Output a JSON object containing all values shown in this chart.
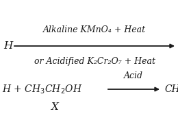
{
  "bg_color": "#ffffff",
  "line1_left_text": "H",
  "line1_above": "Alkaline KMnO₄ + Heat",
  "line1_below": "or Acidified K₂Cr₂O₇ + Heat",
  "line2_left": "H + CH₃CH₂OH",
  "line2_xlabel": "X",
  "line2_above": "Acid",
  "line2_right": "CH",
  "arrow_color": "#1a1a1a",
  "text_color": "#1a1a1a",
  "font_size_main": 9.5,
  "font_size_label": 8.5
}
